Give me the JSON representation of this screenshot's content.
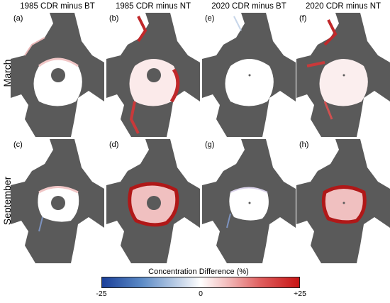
{
  "columns": [
    "1985 CDR minus BT",
    "1985 CDR minus NT",
    "2020 CDR minus BT",
    "2020 CDR minus NT"
  ],
  "rows": [
    "March",
    "September"
  ],
  "panels": [
    "(a)",
    "(b)",
    "(e)",
    "(f)",
    "(c)",
    "(d)",
    "(g)",
    "(h)"
  ],
  "colorbar": {
    "title": "Concentration Difference (%)",
    "ticks": [
      "-25",
      "0",
      "+25"
    ],
    "colors": [
      "#1a3f99",
      "#ffffff",
      "#c81414"
    ]
  }
}
